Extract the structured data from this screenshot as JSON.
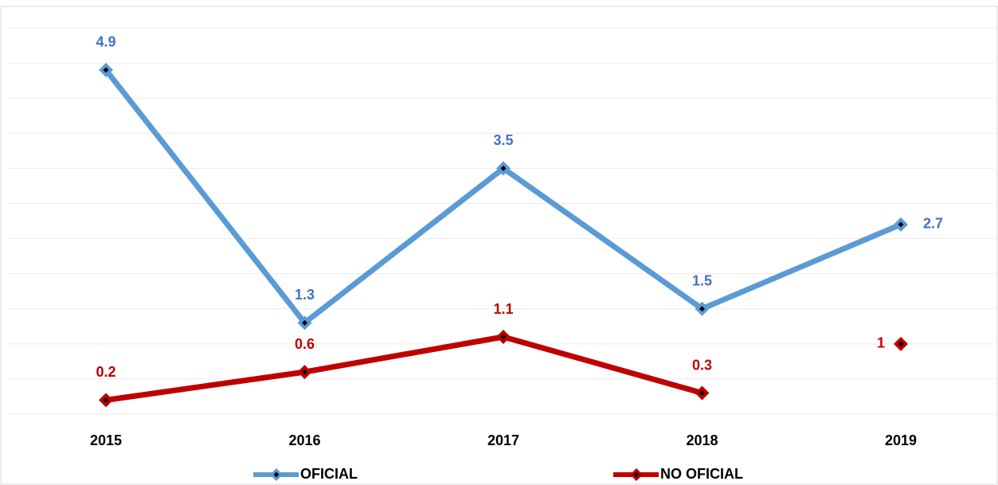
{
  "chart_data": {
    "type": "line",
    "categories": [
      "2015",
      "2016",
      "2017",
      "2018",
      "2019"
    ],
    "series": [
      {
        "name": "OFICIAL",
        "color": "#5b9bd5",
        "label_color": "#4472c4",
        "values": [
          4.9,
          1.3,
          3.5,
          1.5,
          2.7
        ]
      },
      {
        "name": "NO OFICIAL",
        "color": "#c00000",
        "label_color": "#c00000",
        "values": [
          0.2,
          0.6,
          1.1,
          0.3,
          1.0
        ],
        "unconnected": [
          4
        ]
      }
    ],
    "ylim": [
      0,
      5.5
    ],
    "yticks": [
      0,
      0.5,
      1,
      1.5,
      2,
      2.5,
      3,
      3.5,
      4,
      4.5,
      5,
      5.5
    ],
    "grid": true,
    "legend": "bottom"
  }
}
